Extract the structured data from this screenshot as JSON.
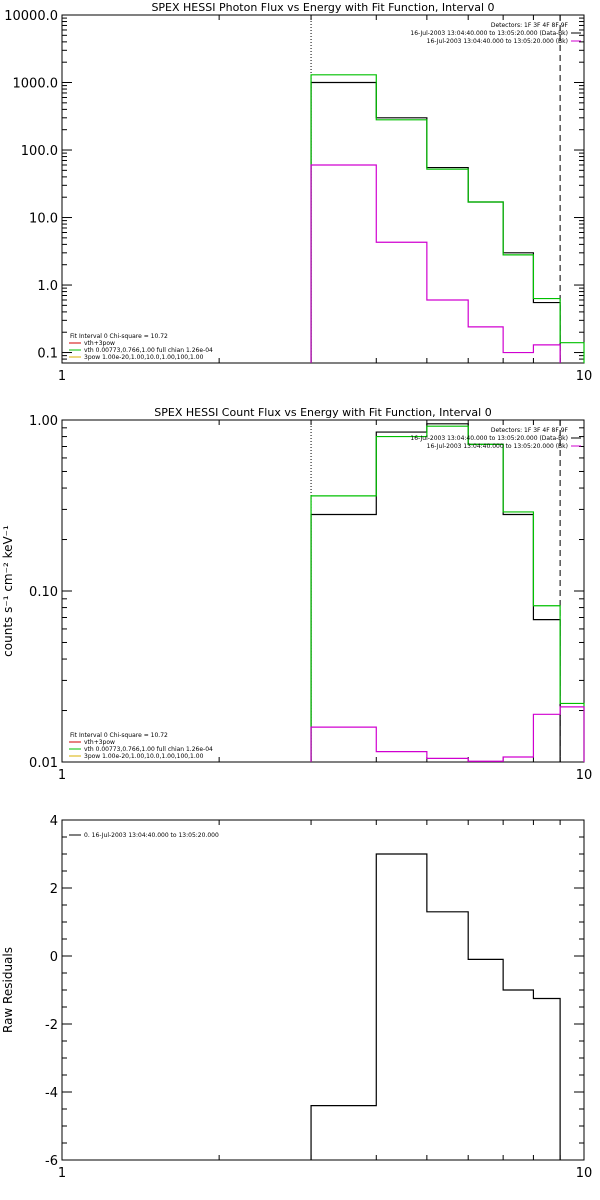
{
  "chart_data": [
    {
      "type": "line",
      "title": "SPEX HESSI Photon Flux vs Energy with Fit Function, Interval 0",
      "xscale": "log",
      "yscale": "log",
      "xlim": [
        1,
        10
      ],
      "ylim": [
        0.07,
        10000
      ],
      "xticks": [
        {
          "v": 1,
          "label": "1"
        },
        {
          "v": 10,
          "label": "10"
        }
      ],
      "yticks": [
        {
          "v": 0.1,
          "label": "0.1"
        },
        {
          "v": 1,
          "label": "1.0"
        },
        {
          "v": 10,
          "label": "10.0"
        },
        {
          "v": 100,
          "label": "100.0"
        },
        {
          "v": 1000,
          "label": "1000.0"
        },
        {
          "v": 10000,
          "label": "10000.0"
        }
      ],
      "vlines": [
        {
          "x": 3,
          "style": "dotted"
        },
        {
          "x": 9,
          "style": "dashed"
        }
      ],
      "legend_right": [
        {
          "text": "Detectors: 1F 3F 4F 8F 9F",
          "color": ""
        },
        {
          "text": "16-Jul-2003 13:04:40.000 to 13:05:20.000 (Data-Bk)",
          "color": "#000000"
        },
        {
          "text": "16-Jul-2003 13:04:40.000 to 13:05:20.000 (Bk)",
          "color": "#d000d0"
        }
      ],
      "legend_left": [
        {
          "text": "Fit Interval 0   Chi-square = 10.72",
          "color": ""
        },
        {
          "text": "vth+3pow",
          "color": "#d00000"
        },
        {
          "text": "vth 0.00773,0.766,1.00  full chian 1.26e-04",
          "color": "#00c000"
        },
        {
          "text": "3pow 1.00e-20,1.00,10.0,1.00,100,1.00",
          "color": "#d8b000"
        }
      ],
      "series": [
        {
          "color": "#000000",
          "edges": [
            3,
            4,
            5,
            6,
            7,
            8,
            9
          ],
          "values": [
            1000,
            300,
            55,
            17,
            3,
            0.55
          ]
        },
        {
          "color": "#00c000",
          "edges": [
            3,
            4,
            5,
            6,
            7,
            8,
            9,
            10
          ],
          "values": [
            1300,
            280,
            52,
            17,
            2.8,
            0.63,
            0.14
          ]
        },
        {
          "color": "#d000d0",
          "edges": [
            3,
            4,
            5,
            6,
            7,
            8,
            9
          ],
          "values": [
            60,
            4.3,
            0.6,
            0.24,
            0.1,
            0.13
          ]
        }
      ]
    },
    {
      "type": "line",
      "title": "SPEX HESSI Count Flux vs Energy with Fit Function, Interval 0",
      "ylabel": "counts s⁻¹ cm⁻² keV⁻¹",
      "xscale": "log",
      "yscale": "log",
      "xlim": [
        1,
        10
      ],
      "ylim": [
        0.01,
        1.0
      ],
      "xticks": [
        {
          "v": 1,
          "label": "1"
        },
        {
          "v": 10,
          "label": "10"
        }
      ],
      "yticks": [
        {
          "v": 0.01,
          "label": "0.01"
        },
        {
          "v": 0.1,
          "label": "0.10"
        },
        {
          "v": 1,
          "label": "1.00"
        }
      ],
      "vlines": [
        {
          "x": 3,
          "style": "dotted"
        },
        {
          "x": 9,
          "style": "dashed"
        }
      ],
      "legend_right": [
        {
          "text": "Detectors: 1F 3F 4F 8F 9F",
          "color": ""
        },
        {
          "text": "16-Jul-2003 13:04:40.000 to 13:05:20.000 (Data-Bk)",
          "color": "#000000"
        },
        {
          "text": "16-Jul-2003 13:04:40.000 to 13:05:20.000 (Bk)",
          "color": "#d000d0"
        }
      ],
      "legend_left": [
        {
          "text": "Fit Interval 0   Chi-square = 10.72",
          "color": ""
        },
        {
          "text": "vth+3pow",
          "color": "#d00000"
        },
        {
          "text": "vth 0.00773,0.766,1.00  full chian 1.26e-04",
          "color": "#00c000"
        },
        {
          "text": "3pow 1.00e-20,1.00,10.0,1.00,100,1.00",
          "color": "#d8b000"
        }
      ],
      "series": [
        {
          "color": "#000000",
          "edges": [
            3,
            4,
            5,
            6,
            7,
            8,
            9
          ],
          "values": [
            0.28,
            0.85,
            0.95,
            0.72,
            0.28,
            0.068
          ]
        },
        {
          "color": "#00c000",
          "edges": [
            3,
            4,
            5,
            6,
            7,
            8,
            9,
            10
          ],
          "values": [
            0.36,
            0.8,
            0.92,
            0.72,
            0.29,
            0.082,
            0.022
          ]
        },
        {
          "color": "#d000d0",
          "edges": [
            3,
            4,
            5,
            6,
            7,
            8,
            9,
            10
          ],
          "values": [
            0.016,
            0.0115,
            0.0105,
            0.0101,
            0.0107,
            0.019,
            0.021
          ]
        }
      ]
    },
    {
      "type": "line",
      "title": "",
      "ylabel": "Raw Residuals",
      "xscale": "log",
      "yscale": "linear",
      "xlim": [
        1,
        10
      ],
      "ylim": [
        -6,
        4
      ],
      "xticks": [
        {
          "v": 1,
          "label": "1"
        },
        {
          "v": 10,
          "label": "10"
        }
      ],
      "yticks": [
        {
          "v": -6,
          "label": "-6"
        },
        {
          "v": -4,
          "label": "-4"
        },
        {
          "v": -2,
          "label": "-2"
        },
        {
          "v": 0,
          "label": "0"
        },
        {
          "v": 2,
          "label": "2"
        },
        {
          "v": 4,
          "label": "4"
        }
      ],
      "vlines": [],
      "legend_right": [],
      "legend_left": [
        {
          "text": "0. 16-Jul-2003 13:04:40.000 to 13:05:20.000",
          "color": "#000000"
        }
      ],
      "series": [
        {
          "color": "#000000",
          "edges": [
            3,
            4,
            5,
            6,
            7,
            8,
            9
          ],
          "values": [
            -4.4,
            3.0,
            1.3,
            -0.1,
            -1.0,
            -1.25
          ]
        }
      ]
    }
  ]
}
